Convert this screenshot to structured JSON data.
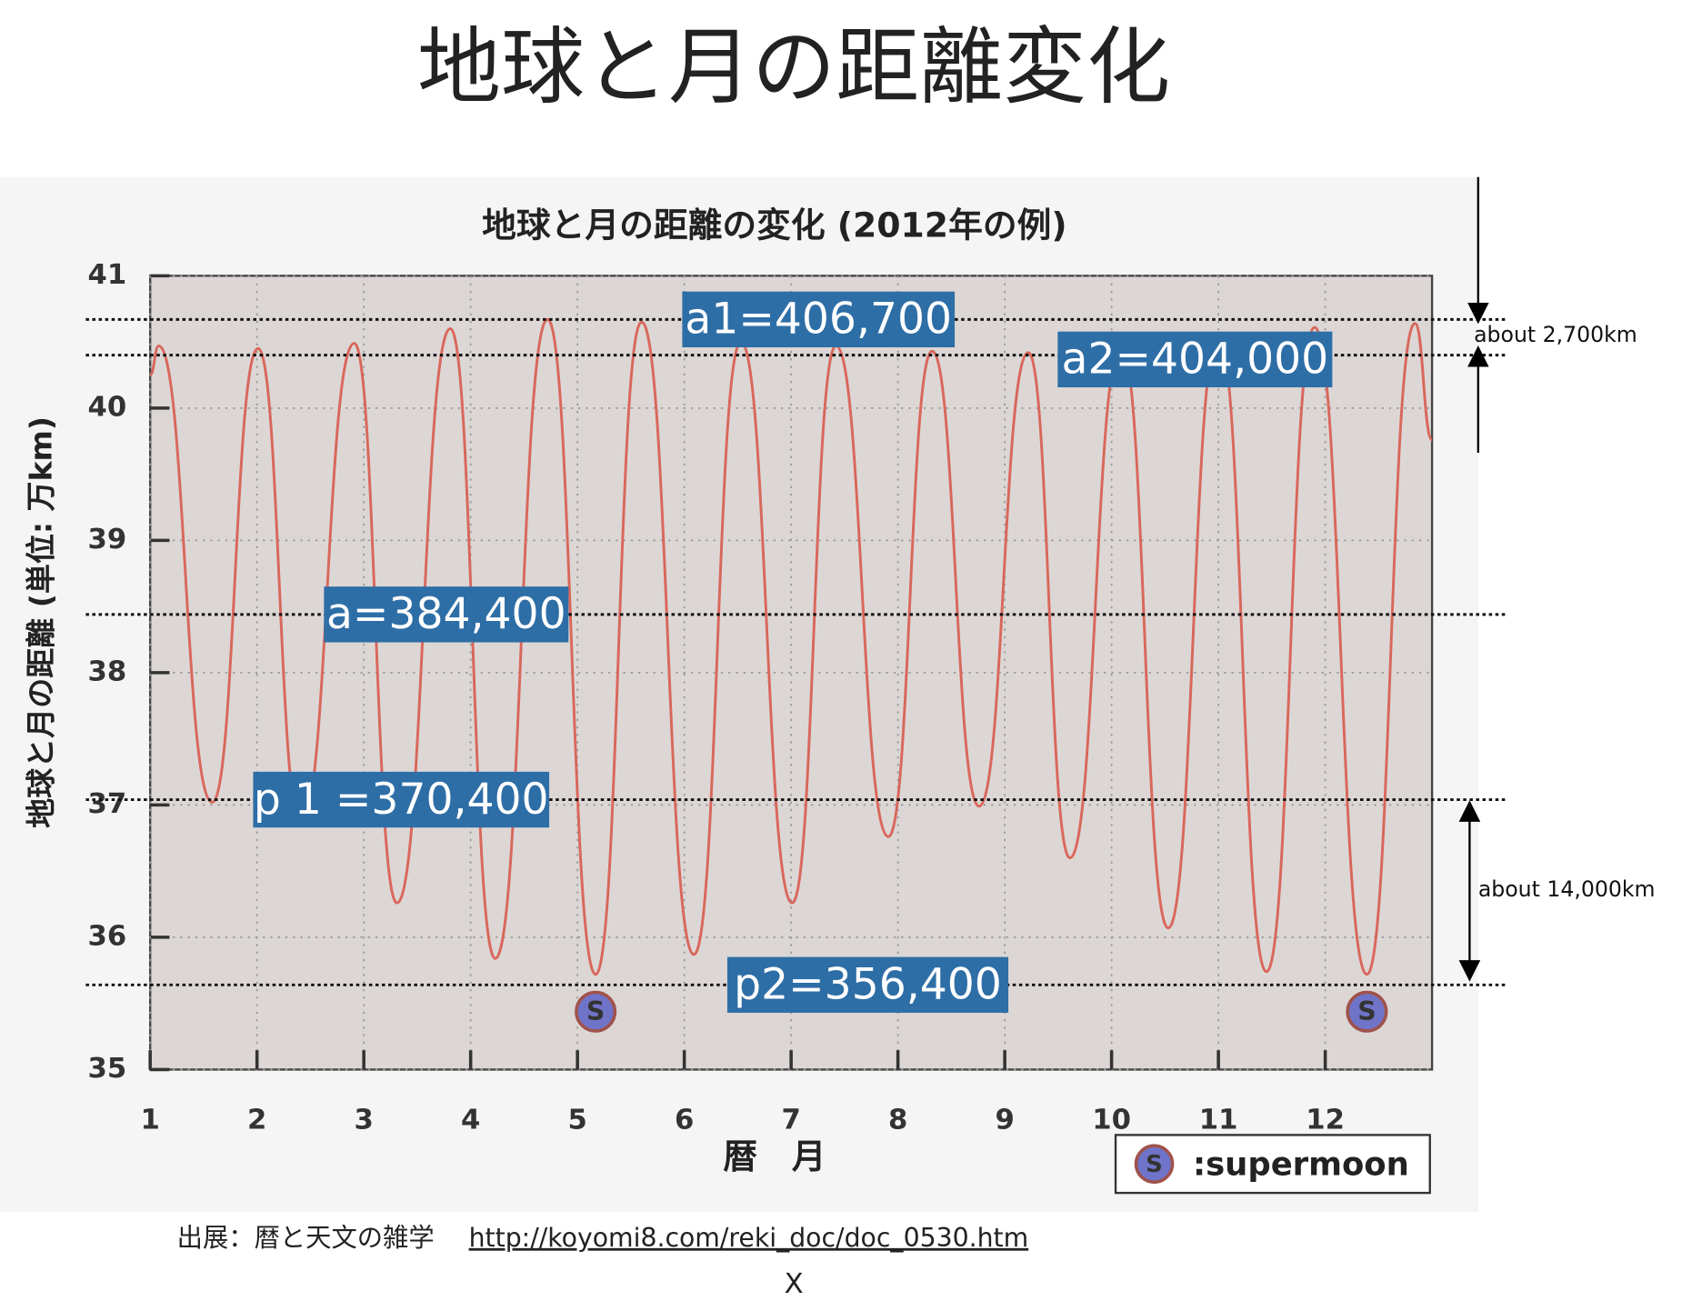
{
  "title": "地球と月の距離変化",
  "chart_data": {
    "type": "line",
    "title": "地球と月の距離の変化 (2012年の例)",
    "x_label": "暦　月",
    "y_label": "地球と月の距離 (単位: 万km)",
    "x": [
      1.0,
      1.08,
      1.58,
      2.01,
      2.41,
      2.91,
      3.31,
      3.81,
      4.23,
      4.72,
      5.17,
      5.6,
      6.09,
      6.53,
      7.01,
      7.42,
      7.91,
      8.32,
      8.76,
      9.22,
      9.61,
      10.09,
      10.53,
      11.0,
      11.45,
      11.9,
      12.39,
      12.84,
      13.0
    ],
    "series": [
      {
        "color": "#d9675c",
        "values": [
          40.25,
          40.47,
          37.02,
          40.45,
          36.85,
          40.49,
          36.26,
          40.6,
          35.84,
          40.67,
          35.72,
          40.65,
          35.87,
          40.5,
          36.26,
          40.47,
          36.76,
          40.43,
          36.99,
          40.42,
          36.6,
          40.47,
          36.07,
          40.55,
          35.74,
          40.61,
          35.72,
          40.64,
          39.76
        ]
      }
    ],
    "xlim": [
      1,
      13
    ],
    "xticks": [
      1,
      2,
      3,
      4,
      5,
      6,
      7,
      8,
      9,
      10,
      11,
      12
    ],
    "ylim": [
      35,
      41
    ],
    "yticks": [
      35,
      36,
      37,
      38,
      39,
      40,
      41
    ],
    "grid": true,
    "supermoons": {
      "x": [
        5.17,
        12.39
      ],
      "symbol": "S"
    },
    "legend_label": ":supermoon",
    "reference_lines": [
      {
        "value": 40.67,
        "label": "a1=406,700"
      },
      {
        "value": 40.4,
        "label": "a2=404,000"
      },
      {
        "value": 38.44,
        "label": "a=384,400"
      },
      {
        "value": 37.04,
        "label": "p 1 =370,400"
      },
      {
        "value": 35.64,
        "label": "p2=356,400"
      }
    ],
    "differences": [
      "about 2,700km",
      "about 14,000km"
    ]
  },
  "source_text": "出展：暦と天文の雑学",
  "source_url": "http://koyomi8.com/reki_doc/doc_0530.htm",
  "footer_mark": "X"
}
